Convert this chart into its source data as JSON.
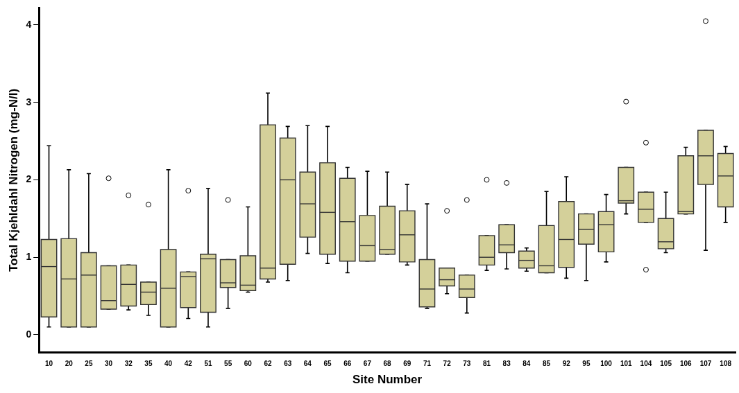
{
  "chart_data": {
    "type": "box",
    "xlabel": "Site Number",
    "ylabel": "Total Kjehldahl Nitrogen (mg-N/l)",
    "categories": [
      "10",
      "20",
      "25",
      "30",
      "32",
      "35",
      "40",
      "42",
      "51",
      "55",
      "60",
      "62",
      "63",
      "64",
      "65",
      "66",
      "67",
      "68",
      "69",
      "71",
      "72",
      "73",
      "81",
      "83",
      "84",
      "85",
      "92",
      "95",
      "100",
      "101",
      "104",
      "105",
      "106",
      "107",
      "108"
    ],
    "color": "#d4d09a",
    "ylim": [
      -0.23,
      4.22
    ],
    "yticks": [
      0,
      1,
      2,
      3,
      4
    ],
    "grid": false,
    "legend": false,
    "boxes": [
      {
        "low": 0.1,
        "q1": 0.23,
        "median": 0.88,
        "q3": 1.23,
        "high": 2.44
      },
      {
        "low": 0.1,
        "q1": 0.1,
        "median": 0.72,
        "q3": 1.24,
        "high": 2.13
      },
      {
        "low": 0.1,
        "q1": 0.1,
        "median": 0.77,
        "q3": 1.06,
        "high": 2.08
      },
      {
        "low": 0.33,
        "q1": 0.33,
        "median": 0.44,
        "q3": 0.89,
        "high": 0.89,
        "outliers": [
          2.02
        ]
      },
      {
        "low": 0.32,
        "q1": 0.37,
        "median": 0.65,
        "q3": 0.9,
        "high": 0.9,
        "outliers": [
          1.8
        ]
      },
      {
        "low": 0.25,
        "q1": 0.39,
        "median": 0.55,
        "q3": 0.68,
        "high": 0.68,
        "outliers": [
          1.68
        ]
      },
      {
        "low": 0.1,
        "q1": 0.1,
        "median": 0.6,
        "q3": 1.1,
        "high": 2.13
      },
      {
        "low": 0.21,
        "q1": 0.35,
        "median": 0.75,
        "q3": 0.81,
        "high": 0.81,
        "outliers": [
          1.86
        ]
      },
      {
        "low": 0.1,
        "q1": 0.29,
        "median": 0.98,
        "q3": 1.04,
        "high": 1.89
      },
      {
        "low": 0.34,
        "q1": 0.61,
        "median": 0.67,
        "q3": 0.97,
        "high": 0.97,
        "outliers": [
          1.74
        ]
      },
      {
        "low": 0.55,
        "q1": 0.57,
        "median": 0.64,
        "q3": 1.02,
        "high": 1.65
      },
      {
        "low": 0.68,
        "q1": 0.72,
        "median": 0.86,
        "q3": 2.71,
        "high": 3.12
      },
      {
        "low": 0.7,
        "q1": 0.91,
        "median": 2.0,
        "q3": 2.54,
        "high": 2.69
      },
      {
        "low": 1.05,
        "q1": 1.26,
        "median": 1.69,
        "q3": 2.1,
        "high": 2.7
      },
      {
        "low": 0.92,
        "q1": 1.04,
        "median": 1.58,
        "q3": 2.22,
        "high": 2.69
      },
      {
        "low": 0.8,
        "q1": 0.95,
        "median": 1.46,
        "q3": 2.02,
        "high": 2.16
      },
      {
        "low": 0.95,
        "q1": 0.95,
        "median": 1.15,
        "q3": 1.54,
        "high": 2.11
      },
      {
        "low": 1.04,
        "q1": 1.04,
        "median": 1.1,
        "q3": 1.66,
        "high": 2.1
      },
      {
        "low": 0.9,
        "q1": 0.94,
        "median": 1.29,
        "q3": 1.6,
        "high": 1.94
      },
      {
        "low": 0.34,
        "q1": 0.36,
        "median": 0.59,
        "q3": 0.97,
        "high": 1.69
      },
      {
        "low": 0.53,
        "q1": 0.63,
        "median": 0.71,
        "q3": 0.86,
        "high": 0.86,
        "outliers": [
          1.6
        ]
      },
      {
        "low": 0.28,
        "q1": 0.48,
        "median": 0.59,
        "q3": 0.77,
        "high": 0.77,
        "outliers": [
          1.74
        ]
      },
      {
        "low": 0.83,
        "q1": 0.9,
        "median": 1.0,
        "q3": 1.28,
        "high": 1.28,
        "outliers": [
          2.0
        ]
      },
      {
        "low": 0.85,
        "q1": 1.06,
        "median": 1.16,
        "q3": 1.42,
        "high": 1.42,
        "outliers": [
          1.96
        ]
      },
      {
        "low": 0.82,
        "q1": 0.86,
        "median": 0.96,
        "q3": 1.08,
        "high": 1.12
      },
      {
        "low": 0.8,
        "q1": 0.8,
        "median": 0.89,
        "q3": 1.41,
        "high": 1.85
      },
      {
        "low": 0.73,
        "q1": 0.87,
        "median": 1.23,
        "q3": 1.72,
        "high": 2.04
      },
      {
        "low": 0.7,
        "q1": 1.17,
        "median": 1.36,
        "q3": 1.56,
        "high": 1.56
      },
      {
        "low": 0.94,
        "q1": 1.07,
        "median": 1.42,
        "q3": 1.59,
        "high": 1.81
      },
      {
        "low": 1.56,
        "q1": 1.7,
        "median": 1.73,
        "q3": 2.16,
        "high": 2.16,
        "outliers": [
          3.01
        ]
      },
      {
        "low": 1.45,
        "q1": 1.45,
        "median": 1.62,
        "q3": 1.84,
        "high": 1.84,
        "outliers": [
          2.48,
          0.84
        ]
      },
      {
        "low": 1.06,
        "q1": 1.11,
        "median": 1.2,
        "q3": 1.5,
        "high": 1.84
      },
      {
        "low": 1.56,
        "q1": 1.56,
        "median": 1.59,
        "q3": 2.31,
        "high": 2.42
      },
      {
        "low": 1.09,
        "q1": 1.94,
        "median": 2.31,
        "q3": 2.64,
        "high": 2.64,
        "outliers": [
          4.05
        ]
      },
      {
        "low": 1.45,
        "q1": 1.65,
        "median": 2.05,
        "q3": 2.34,
        "high": 2.43
      }
    ]
  }
}
